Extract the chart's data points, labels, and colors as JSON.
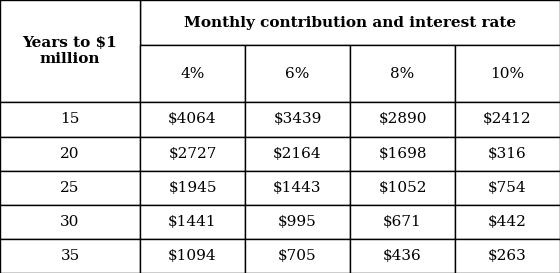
{
  "title": "Monthly contribution and interest rate",
  "col_header_row1": "Years to $1\nmillion",
  "rate_headers": [
    "4%",
    "6%",
    "8%",
    "10%"
  ],
  "years": [
    "15",
    "20",
    "25",
    "30",
    "35"
  ],
  "table_data": [
    [
      "$4064",
      "$3439",
      "$2890",
      "$2412"
    ],
    [
      "$2727",
      "$2164",
      "$1698",
      "$316"
    ],
    [
      "$1945",
      "$1443",
      "$1052",
      "$754"
    ],
    [
      "$1441",
      "$995",
      "$671",
      "$442"
    ],
    [
      "$1094",
      "$705",
      "$436",
      "$263"
    ]
  ],
  "bg_color": "#ffffff",
  "border_color": "#000000",
  "title_fontsize": 11,
  "header_fontsize": 11,
  "cell_fontsize": 11,
  "figwidth": 5.6,
  "figheight": 2.73,
  "dpi": 100
}
